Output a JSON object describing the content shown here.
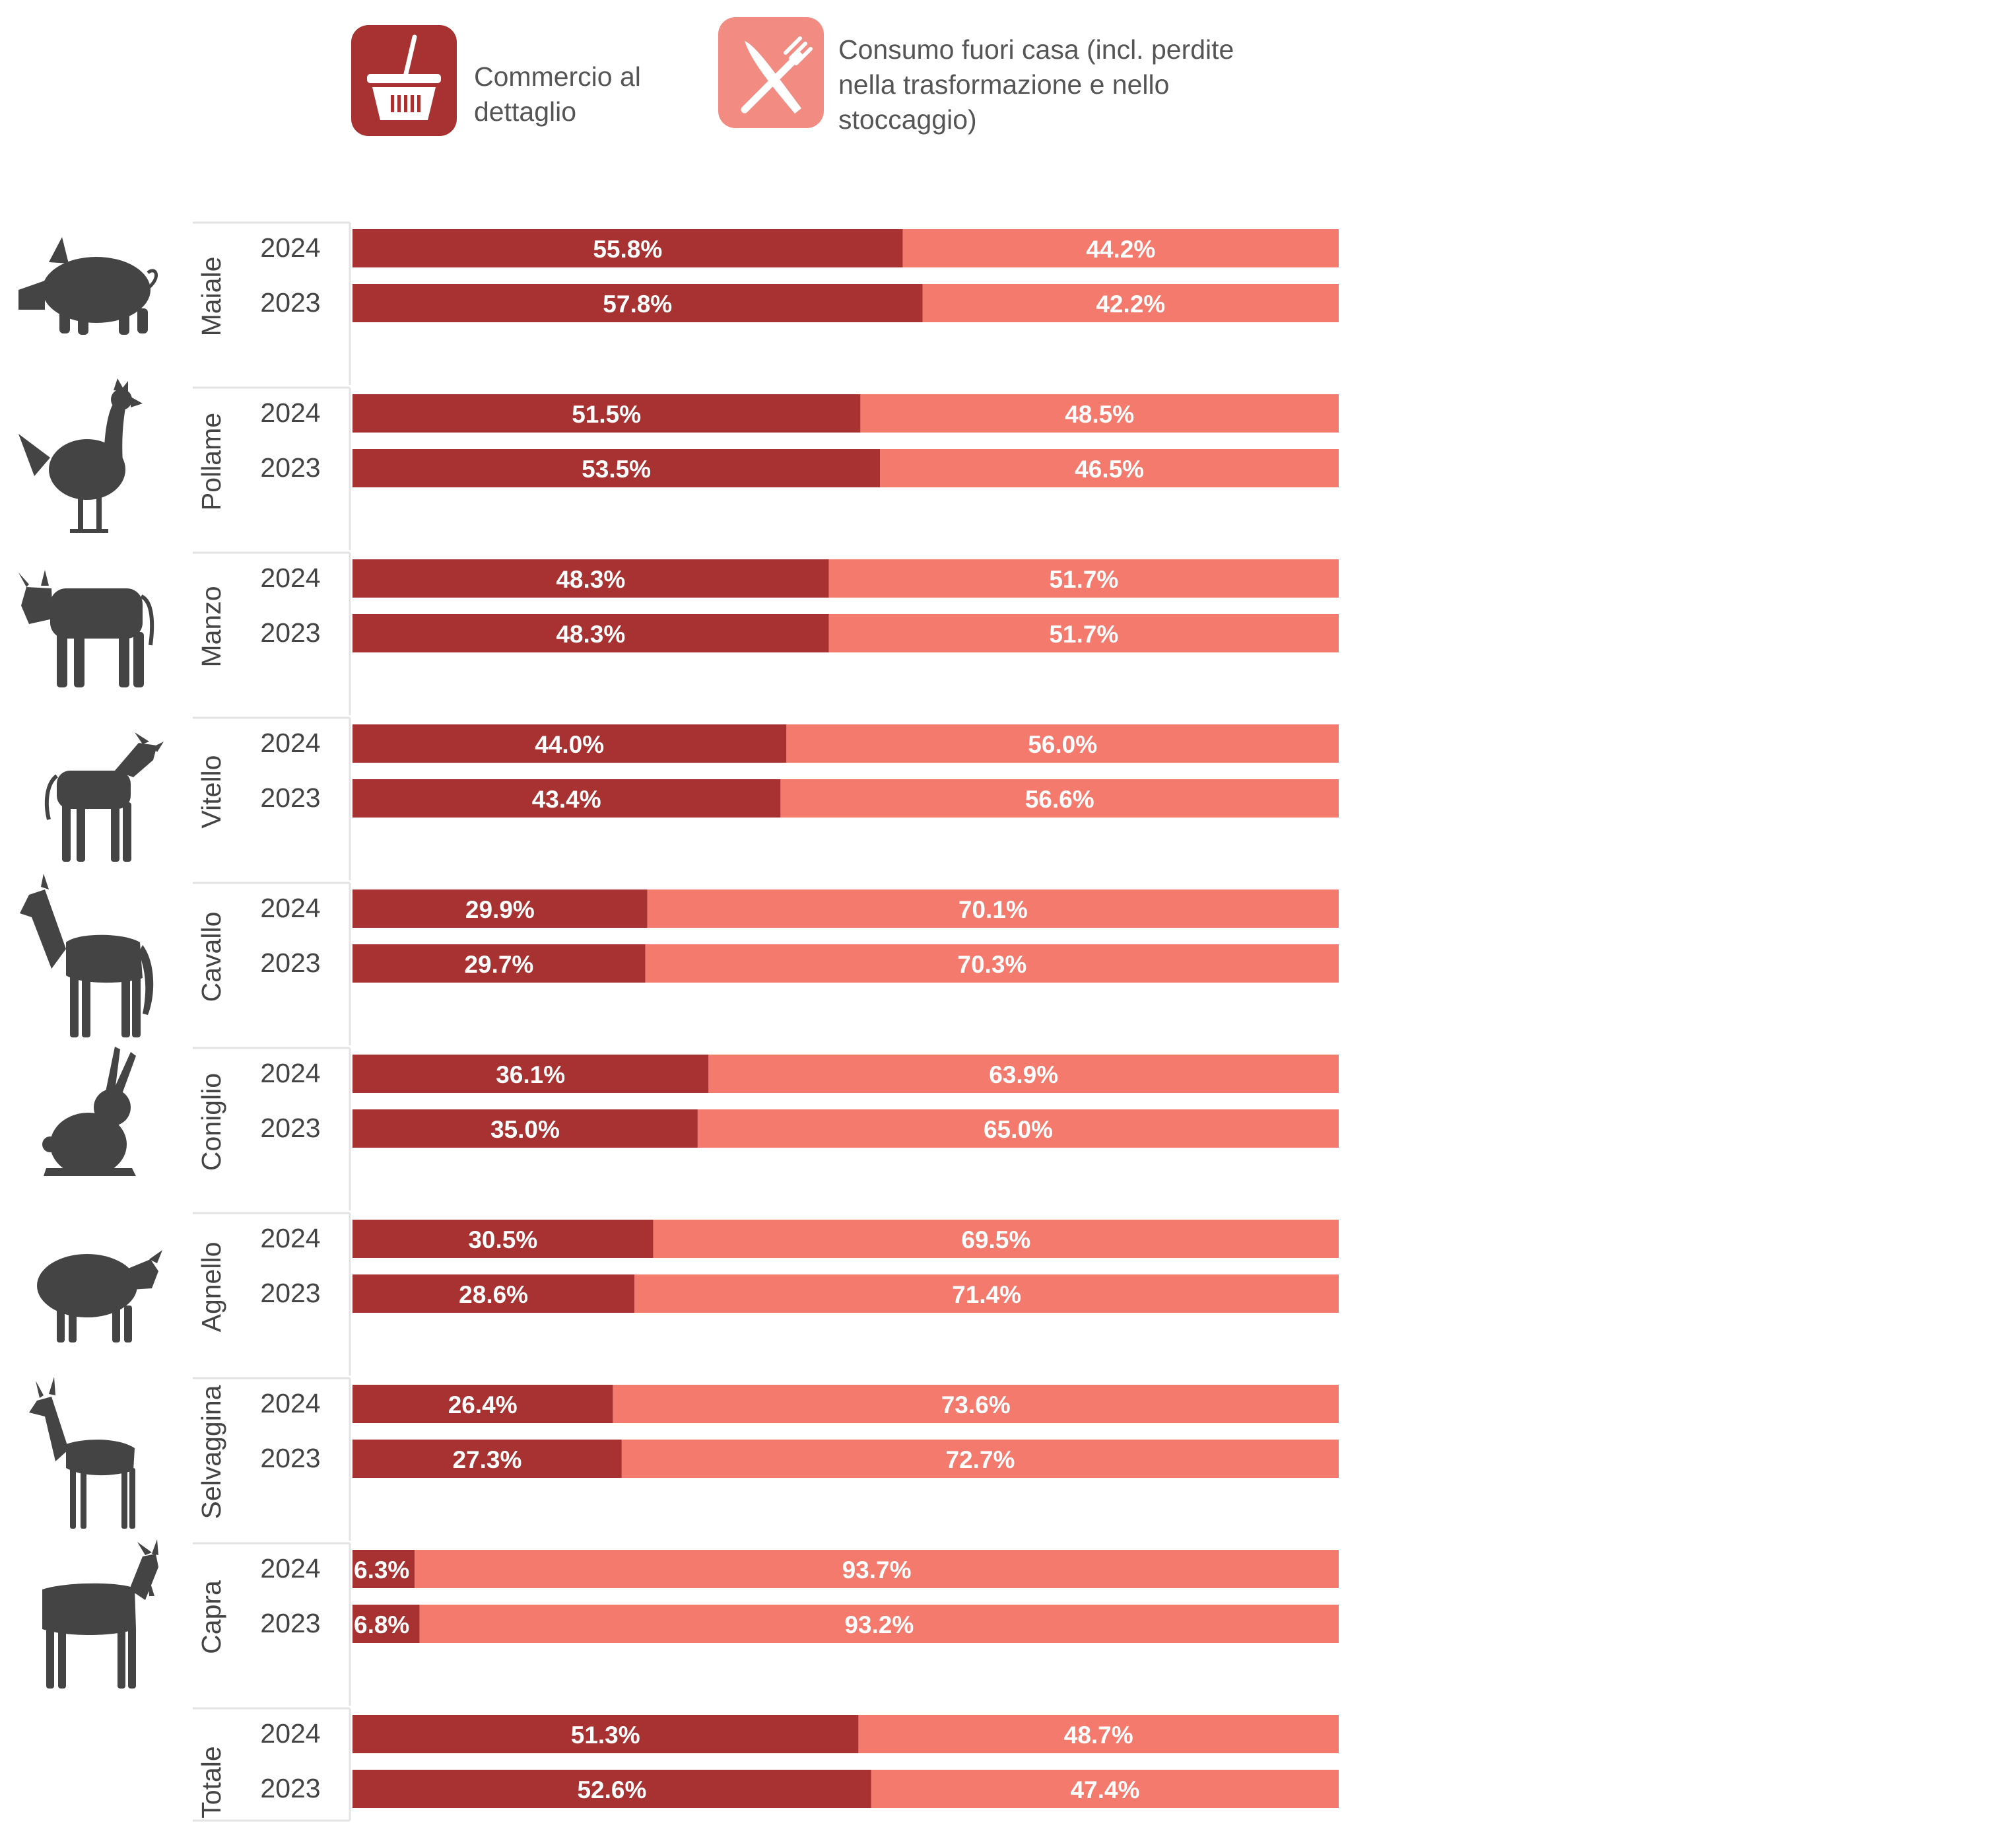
{
  "colors": {
    "retail": "#a83232",
    "out_of_home": "#f47a6e",
    "icon_fill": "#444444",
    "retail_icon_bg": "#a83232",
    "out_of_home_icon_bg": "#f28b82"
  },
  "legend": [
    {
      "key": "retail",
      "lines": [
        "Commercio al",
        "dettaglio"
      ],
      "icon": "shopping-basket-icon"
    },
    {
      "key": "out_of_home",
      "lines": [
        "Consumo fuori casa (incl. perdite",
        "nella trasformazione e nello",
        "stoccaggio)"
      ],
      "icon": "fork-knife-icon"
    }
  ],
  "chart_data": {
    "type": "bar",
    "orientation": "horizontal",
    "stacked": true,
    "normalized": true,
    "xlim": [
      0,
      100
    ],
    "series": [
      {
        "name": "Commercio al dettaglio",
        "key": "retail"
      },
      {
        "name": "Consumo fuori casa (incl. perdite nella trasformazione e nello stoccaggio)",
        "key": "out_of_home"
      }
    ],
    "groups": [
      {
        "name": "Maiale",
        "icon": "pig-icon",
        "rows": [
          {
            "year": "2024",
            "retail": 55.8,
            "out_of_home": 44.2,
            "retail_label": "55.8%",
            "out_of_home_label": "44.2%"
          },
          {
            "year": "2023",
            "retail": 57.8,
            "out_of_home": 42.2,
            "retail_label": "57.8%",
            "out_of_home_label": "42.2%"
          }
        ]
      },
      {
        "name": "Pollame",
        "icon": "chicken-icon",
        "rows": [
          {
            "year": "2024",
            "retail": 51.5,
            "out_of_home": 48.5,
            "retail_label": "51.5%",
            "out_of_home_label": "48.5%"
          },
          {
            "year": "2023",
            "retail": 53.5,
            "out_of_home": 46.5,
            "retail_label": "53.5%",
            "out_of_home_label": "46.5%"
          }
        ]
      },
      {
        "name": "Manzo",
        "icon": "cow-icon",
        "rows": [
          {
            "year": "2024",
            "retail": 48.3,
            "out_of_home": 51.7,
            "retail_label": "48.3%",
            "out_of_home_label": "51.7%"
          },
          {
            "year": "2023",
            "retail": 48.3,
            "out_of_home": 51.7,
            "retail_label": "48.3%",
            "out_of_home_label": "51.7%"
          }
        ]
      },
      {
        "name": "Vitello",
        "icon": "calf-icon",
        "rows": [
          {
            "year": "2024",
            "retail": 44.0,
            "out_of_home": 56.0,
            "retail_label": "44.0%",
            "out_of_home_label": "56.0%"
          },
          {
            "year": "2023",
            "retail": 43.4,
            "out_of_home": 56.6,
            "retail_label": "43.4%",
            "out_of_home_label": "56.6%"
          }
        ]
      },
      {
        "name": "Cavallo",
        "icon": "horse-icon",
        "rows": [
          {
            "year": "2024",
            "retail": 29.9,
            "out_of_home": 70.1,
            "retail_label": "29.9%",
            "out_of_home_label": "70.1%"
          },
          {
            "year": "2023",
            "retail": 29.7,
            "out_of_home": 70.3,
            "retail_label": "29.7%",
            "out_of_home_label": "70.3%"
          }
        ]
      },
      {
        "name": "Coniglio",
        "icon": "rabbit-icon",
        "rows": [
          {
            "year": "2024",
            "retail": 36.1,
            "out_of_home": 63.9,
            "retail_label": "36.1%",
            "out_of_home_label": "63.9%"
          },
          {
            "year": "2023",
            "retail": 35.0,
            "out_of_home": 65.0,
            "retail_label": "35.0%",
            "out_of_home_label": "65.0%"
          }
        ]
      },
      {
        "name": "Agnello",
        "icon": "sheep-icon",
        "rows": [
          {
            "year": "2024",
            "retail": 30.5,
            "out_of_home": 69.5,
            "retail_label": "30.5%",
            "out_of_home_label": "69.5%"
          },
          {
            "year": "2023",
            "retail": 28.6,
            "out_of_home": 71.4,
            "retail_label": "28.6%",
            "out_of_home_label": "71.4%"
          }
        ]
      },
      {
        "name": "Selvaggina",
        "icon": "deer-icon",
        "rows": [
          {
            "year": "2024",
            "retail": 26.4,
            "out_of_home": 73.6,
            "retail_label": "26.4%",
            "out_of_home_label": "73.6%"
          },
          {
            "year": "2023",
            "retail": 27.3,
            "out_of_home": 72.7,
            "retail_label": "27.3%",
            "out_of_home_label": "72.7%"
          }
        ]
      },
      {
        "name": "Capra",
        "icon": "goat-icon",
        "rows": [
          {
            "year": "2024",
            "retail": 6.3,
            "out_of_home": 93.7,
            "retail_label": "6.3%",
            "out_of_home_label": "93.7%"
          },
          {
            "year": "2023",
            "retail": 6.8,
            "out_of_home": 93.2,
            "retail_label": "6.8%",
            "out_of_home_label": "93.2%"
          }
        ]
      },
      {
        "name": "Totale",
        "icon": "",
        "rows": [
          {
            "year": "2024",
            "retail": 51.3,
            "out_of_home": 48.7,
            "retail_label": "51.3%",
            "out_of_home_label": "48.7%"
          },
          {
            "year": "2023",
            "retail": 52.6,
            "out_of_home": 47.4,
            "retail_label": "52.6%",
            "out_of_home_label": "47.4%"
          }
        ]
      }
    ]
  }
}
